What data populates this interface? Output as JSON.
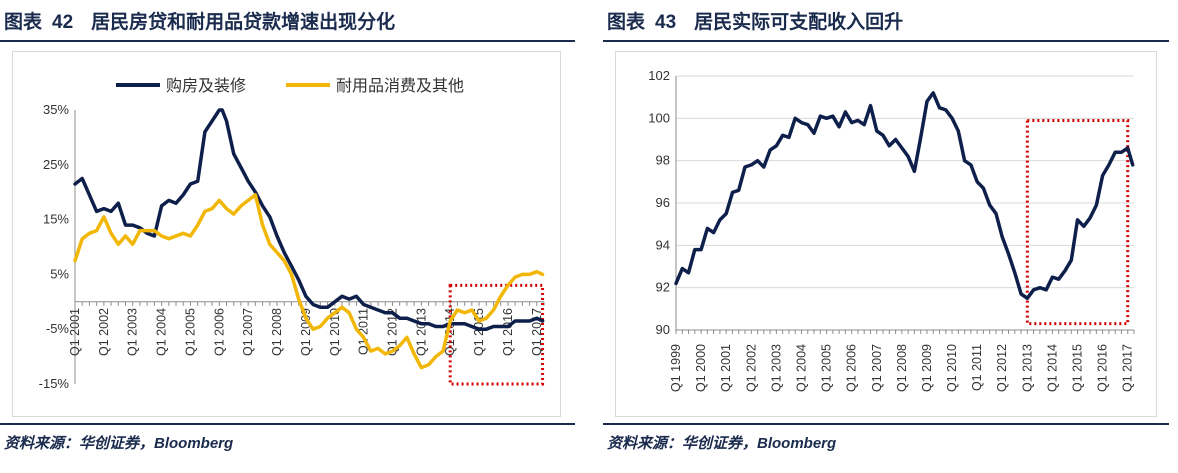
{
  "colors": {
    "navy": "#0d1f4a",
    "gold": "#f2b705",
    "highlight": "#d40000",
    "grid": "#d9d9d9",
    "text": "#1a2b4d"
  },
  "left_panel": {
    "figure_label": "图表",
    "figure_number": "42",
    "title": "居民房贷和耐用品贷款增速出现分化",
    "source": "资料来源：华创证券，Bloomberg"
  },
  "right_panel": {
    "figure_label": "图表",
    "figure_number": "43",
    "title": "居民实际可支配收入回升",
    "source": "资料来源：华创证券，Bloomberg"
  },
  "chart_data": [
    {
      "type": "line",
      "title": "居民房贷和耐用品贷款增速出现分化",
      "xlabel": "",
      "ylabel": "",
      "ylim": [
        -15,
        35
      ],
      "y_ticks": [
        -15,
        -5,
        5,
        15,
        25,
        35
      ],
      "y_tick_labels": [
        "-15%",
        "-5%",
        "5%",
        "15%",
        "25%",
        "35%"
      ],
      "x_start": 2001,
      "x_end": 2017.25,
      "x_tick_labels": [
        "Q1 2001",
        "Q1 2002",
        "Q1 2003",
        "Q1 2004",
        "Q1 2005",
        "Q1 2006",
        "Q1 2007",
        "Q1 2008",
        "Q1 2009",
        "Q1 2010",
        "Q1 2011",
        "Q1 2012",
        "Q1 2013",
        "Q1 2014",
        "Q1 2015",
        "Q1 2016",
        "Q1 2017"
      ],
      "legend_position": "top",
      "highlight_range": {
        "x": [
          2014.0,
          2017.2
        ],
        "y": [
          -15,
          3
        ]
      },
      "series": [
        {
          "name": "购房及装修",
          "color": "#0d1f4a",
          "points": [
            [
              2001.0,
              21.5
            ],
            [
              2001.25,
              22.5
            ],
            [
              2001.5,
              19.5
            ],
            [
              2001.75,
              16.5
            ],
            [
              2002.0,
              17
            ],
            [
              2002.25,
              16.5
            ],
            [
              2002.5,
              18
            ],
            [
              2002.75,
              14
            ],
            [
              2003.0,
              14
            ],
            [
              2003.25,
              13.5
            ],
            [
              2003.5,
              12.5
            ],
            [
              2003.75,
              12
            ],
            [
              2004.0,
              17.5
            ],
            [
              2004.25,
              18.5
            ],
            [
              2004.5,
              18
            ],
            [
              2004.75,
              19.5
            ],
            [
              2005.0,
              21.5
            ],
            [
              2005.25,
              22
            ],
            [
              2005.5,
              31
            ],
            [
              2005.75,
              33
            ],
            [
              2006.0,
              35
            ],
            [
              2006.1,
              35
            ],
            [
              2006.25,
              33
            ],
            [
              2006.5,
              27
            ],
            [
              2006.75,
              24.5
            ],
            [
              2007.0,
              22
            ],
            [
              2007.25,
              20
            ],
            [
              2007.5,
              17.5
            ],
            [
              2007.75,
              15.5
            ],
            [
              2008.0,
              12
            ],
            [
              2008.25,
              9
            ],
            [
              2008.5,
              6.5
            ],
            [
              2008.75,
              4
            ],
            [
              2009.0,
              1
            ],
            [
              2009.25,
              -0.5
            ],
            [
              2009.5,
              -1
            ],
            [
              2009.75,
              -1
            ],
            [
              2010.0,
              0
            ],
            [
              2010.25,
              1
            ],
            [
              2010.5,
              0.5
            ],
            [
              2010.75,
              1
            ],
            [
              2011.0,
              -0.5
            ],
            [
              2011.25,
              -1
            ],
            [
              2011.5,
              -1.5
            ],
            [
              2011.75,
              -2
            ],
            [
              2012.0,
              -2
            ],
            [
              2012.25,
              -3
            ],
            [
              2012.5,
              -3
            ],
            [
              2012.75,
              -3.5
            ],
            [
              2013.0,
              -4
            ],
            [
              2013.25,
              -4
            ],
            [
              2013.5,
              -4.5
            ],
            [
              2013.75,
              -4.5
            ],
            [
              2014.0,
              -4
            ],
            [
              2014.25,
              -4
            ],
            [
              2014.5,
              -4
            ],
            [
              2014.75,
              -4.5
            ],
            [
              2015.0,
              -5
            ],
            [
              2015.25,
              -5
            ],
            [
              2015.5,
              -4.5
            ],
            [
              2015.75,
              -4.5
            ],
            [
              2016.0,
              -4.5
            ],
            [
              2016.25,
              -3.5
            ],
            [
              2016.5,
              -3.5
            ],
            [
              2016.75,
              -3.5
            ],
            [
              2017.0,
              -3
            ],
            [
              2017.2,
              -3.5
            ]
          ]
        },
        {
          "name": "耐用品消费及其他",
          "color": "#f2b705",
          "points": [
            [
              2001.0,
              7.5
            ],
            [
              2001.25,
              11.5
            ],
            [
              2001.5,
              12.5
            ],
            [
              2001.75,
              13
            ],
            [
              2002.0,
              15.5
            ],
            [
              2002.25,
              12.5
            ],
            [
              2002.5,
              10.5
            ],
            [
              2002.75,
              12
            ],
            [
              2003.0,
              10.5
            ],
            [
              2003.25,
              13
            ],
            [
              2003.5,
              13
            ],
            [
              2003.75,
              13
            ],
            [
              2004.0,
              12
            ],
            [
              2004.25,
              11.5
            ],
            [
              2004.5,
              12
            ],
            [
              2004.75,
              12.5
            ],
            [
              2005.0,
              12
            ],
            [
              2005.25,
              14
            ],
            [
              2005.5,
              16.5
            ],
            [
              2005.75,
              17
            ],
            [
              2006.0,
              18.5
            ],
            [
              2006.25,
              17
            ],
            [
              2006.5,
              16
            ],
            [
              2006.75,
              17.5
            ],
            [
              2007.0,
              18.5
            ],
            [
              2007.25,
              19.5
            ],
            [
              2007.5,
              14
            ],
            [
              2007.75,
              10.5
            ],
            [
              2008.0,
              9
            ],
            [
              2008.25,
              7.5
            ],
            [
              2008.5,
              5
            ],
            [
              2008.75,
              0.5
            ],
            [
              2009.0,
              -3
            ],
            [
              2009.25,
              -5
            ],
            [
              2009.5,
              -4.5
            ],
            [
              2009.75,
              -3
            ],
            [
              2010.0,
              -2
            ],
            [
              2010.25,
              -1
            ],
            [
              2010.5,
              -2
            ],
            [
              2010.75,
              -5
            ],
            [
              2011.0,
              -6.5
            ],
            [
              2011.25,
              -9
            ],
            [
              2011.5,
              -8.5
            ],
            [
              2011.75,
              -9.5
            ],
            [
              2012.0,
              -9
            ],
            [
              2012.25,
              -8
            ],
            [
              2012.5,
              -6.5
            ],
            [
              2012.75,
              -9.5
            ],
            [
              2013.0,
              -12
            ],
            [
              2013.25,
              -11.5
            ],
            [
              2013.5,
              -10
            ],
            [
              2013.75,
              -9
            ],
            [
              2014.0,
              -3.5
            ],
            [
              2014.25,
              -1.5
            ],
            [
              2014.5,
              -2
            ],
            [
              2014.75,
              -1.5
            ],
            [
              2015.0,
              -3.5
            ],
            [
              2015.25,
              -3
            ],
            [
              2015.5,
              -1.5
            ],
            [
              2015.75,
              1
            ],
            [
              2016.0,
              3
            ],
            [
              2016.25,
              4.5
            ],
            [
              2016.5,
              5
            ],
            [
              2016.75,
              5
            ],
            [
              2017.0,
              5.5
            ],
            [
              2017.2,
              5
            ]
          ]
        }
      ]
    },
    {
      "type": "line",
      "title": "居民实际可支配收入回升",
      "xlabel": "",
      "ylabel": "",
      "ylim": [
        90,
        102
      ],
      "y_ticks": [
        90,
        92,
        94,
        96,
        98,
        100,
        102
      ],
      "y_tick_labels": [
        "90",
        "92",
        "94",
        "96",
        "98",
        "100",
        "102"
      ],
      "x_start": 1999,
      "x_end": 2017.25,
      "x_tick_labels": [
        "Q1 1999",
        "Q1 2000",
        "Q1 2001",
        "Q1 2002",
        "Q1 2003",
        "Q1 2004",
        "Q1 2005",
        "Q1 2006",
        "Q1 2007",
        "Q1 2008",
        "Q1 2009",
        "Q1 2010",
        "Q1 2011",
        "Q1 2012",
        "Q1 2013",
        "Q1 2014",
        "Q1 2015",
        "Q1 2016",
        "Q1 2017"
      ],
      "highlight_range": {
        "x": [
          2013.0,
          2017.0
        ],
        "y": [
          90.3,
          99.9
        ]
      },
      "series": [
        {
          "name": "居民实际可支配收入",
          "color": "#0d1f4a",
          "points": [
            [
              1999.0,
              92.2
            ],
            [
              1999.25,
              92.9
            ],
            [
              1999.5,
              92.7
            ],
            [
              1999.75,
              93.8
            ],
            [
              2000.0,
              93.8
            ],
            [
              2000.25,
              94.8
            ],
            [
              2000.5,
              94.6
            ],
            [
              2000.75,
              95.2
            ],
            [
              2001.0,
              95.5
            ],
            [
              2001.25,
              96.5
            ],
            [
              2001.5,
              96.6
            ],
            [
              2001.75,
              97.7
            ],
            [
              2002.0,
              97.8
            ],
            [
              2002.25,
              98.0
            ],
            [
              2002.5,
              97.7
            ],
            [
              2002.75,
              98.5
            ],
            [
              2003.0,
              98.7
            ],
            [
              2003.25,
              99.2
            ],
            [
              2003.5,
              99.1
            ],
            [
              2003.75,
              100.0
            ],
            [
              2004.0,
              99.8
            ],
            [
              2004.25,
              99.7
            ],
            [
              2004.5,
              99.3
            ],
            [
              2004.75,
              100.1
            ],
            [
              2005.0,
              100.0
            ],
            [
              2005.25,
              100.1
            ],
            [
              2005.5,
              99.6
            ],
            [
              2005.75,
              100.3
            ],
            [
              2006.0,
              99.8
            ],
            [
              2006.25,
              99.9
            ],
            [
              2006.5,
              99.7
            ],
            [
              2006.75,
              100.6
            ],
            [
              2007.0,
              99.4
            ],
            [
              2007.25,
              99.2
            ],
            [
              2007.5,
              98.7
            ],
            [
              2007.75,
              99.0
            ],
            [
              2008.0,
              98.6
            ],
            [
              2008.25,
              98.2
            ],
            [
              2008.5,
              97.5
            ],
            [
              2008.75,
              99.1
            ],
            [
              2009.0,
              100.8
            ],
            [
              2009.25,
              101.2
            ],
            [
              2009.5,
              100.5
            ],
            [
              2009.75,
              100.4
            ],
            [
              2010.0,
              100.0
            ],
            [
              2010.25,
              99.4
            ],
            [
              2010.5,
              98.0
            ],
            [
              2010.75,
              97.8
            ],
            [
              2011.0,
              97.0
            ],
            [
              2011.25,
              96.7
            ],
            [
              2011.5,
              95.9
            ],
            [
              2011.75,
              95.5
            ],
            [
              2012.0,
              94.4
            ],
            [
              2012.25,
              93.6
            ],
            [
              2012.5,
              92.7
            ],
            [
              2012.75,
              91.7
            ],
            [
              2013.0,
              91.5
            ],
            [
              2013.25,
              91.9
            ],
            [
              2013.5,
              92.0
            ],
            [
              2013.75,
              91.9
            ],
            [
              2014.0,
              92.5
            ],
            [
              2014.25,
              92.4
            ],
            [
              2014.5,
              92.8
            ],
            [
              2014.75,
              93.3
            ],
            [
              2015.0,
              95.2
            ],
            [
              2015.25,
              94.9
            ],
            [
              2015.5,
              95.3
            ],
            [
              2015.75,
              95.9
            ],
            [
              2016.0,
              97.3
            ],
            [
              2016.25,
              97.8
            ],
            [
              2016.5,
              98.4
            ],
            [
              2016.75,
              98.4
            ],
            [
              2017.0,
              98.6
            ],
            [
              2017.2,
              97.8
            ]
          ]
        }
      ]
    }
  ]
}
